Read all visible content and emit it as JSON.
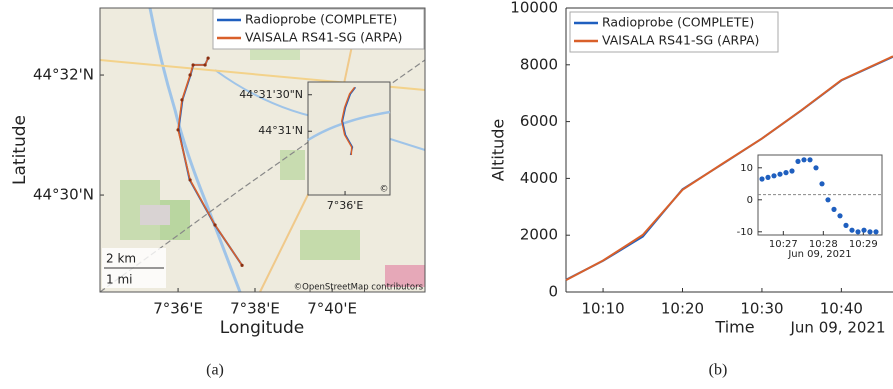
{
  "chart_data": [
    {
      "type": "map",
      "x_label": "Longitude",
      "y_label": "Latitude",
      "caption": "(a)",
      "xlim": [
        7.5662,
        7.7069
      ],
      "ylim": [
        44.4731,
        44.5519
      ],
      "xticks": [
        {
          "value": 7.6,
          "label": "7°36'E"
        },
        {
          "value": 7.6333,
          "label": "7°38'E"
        },
        {
          "value": 7.6667,
          "label": "7°40'E"
        }
      ],
      "yticks": [
        {
          "value": 44.5,
          "label": "44°30'N"
        },
        {
          "value": 44.5333,
          "label": "44°32'N"
        }
      ],
      "legend": "upper right",
      "series": [
        {
          "name": "Radioprobe (COMPLETE)",
          "color": "#1f5fbf",
          "x": [
            7.6277,
            7.6158,
            7.605,
            7.6002,
            7.6019,
            7.6054,
            7.6066,
            7.6117,
            7.613
          ],
          "values": [
            44.4805,
            44.4918,
            44.5043,
            44.5182,
            44.5265,
            44.5333,
            44.5361,
            44.5361,
            44.538
          ]
        },
        {
          "name": "VAISALA RS41-SG (ARPA)",
          "color": "#d9602a",
          "x": [
            7.6277,
            7.616,
            7.6052,
            7.6,
            7.6017,
            7.6052,
            7.6065,
            7.6117,
            7.613
          ],
          "values": [
            44.4805,
            44.4917,
            44.5042,
            44.5181,
            44.5264,
            44.5333,
            44.5361,
            44.5361,
            44.538
          ]
        }
      ],
      "scale_labels": [
        "2 km",
        "1 mi"
      ],
      "attribution": "©OpenStreetMap contributors",
      "inset": {
        "xlim": [
          7.5911,
          7.6108
        ],
        "ylim": [
          44.5022,
          44.5279
        ],
        "xticks": [
          {
            "value": 7.6,
            "label": "7°36'E"
          }
        ],
        "yticks": [
          {
            "value": 44.5167,
            "label": "44°31'N"
          },
          {
            "value": 44.525,
            "label": "44°31'30\"N"
          }
        ],
        "attribution": "©",
        "series": [
          {
            "color": "#1f5fbf",
            "x": [
              7.6013,
              7.6018,
              7.6001,
              7.5994,
              7.6001,
              7.6013,
              7.6025
            ],
            "values": [
              44.5113,
              44.5131,
              44.5159,
              44.519,
              44.5221,
              44.5252,
              44.5267
            ]
          },
          {
            "color": "#d9602a",
            "x": [
              7.6015,
              7.6016,
              7.5999,
              7.5992,
              7.5999,
              7.6011,
              7.6023
            ],
            "values": [
              44.5113,
              44.5131,
              44.5159,
              44.519,
              44.5221,
              44.5252,
              44.5267
            ]
          }
        ]
      }
    },
    {
      "type": "line",
      "x_label": "Time",
      "date_label": "Jun 09, 2021",
      "y_label": "Altitude",
      "caption": "(b)",
      "x": [
        "10:05:20",
        "10:10:00",
        "10:15:00",
        "10:20:00",
        "10:25:00",
        "10:30:00",
        "10:35:00",
        "10:40:00",
        "10:46:30"
      ],
      "xlim": [
        "10:05:20",
        "10:46:30"
      ],
      "xticks": [
        "10:10",
        "10:20",
        "10:30",
        "10:40"
      ],
      "ylim": [
        0,
        10000
      ],
      "yticks": [
        0,
        2000,
        4000,
        6000,
        8000,
        10000
      ],
      "legend": "upper left",
      "series": [
        {
          "name": "Radioprobe (COMPLETE)",
          "color": "#1f5fbf",
          "values": [
            430,
            1100,
            1950,
            3620,
            4500,
            5400,
            6400,
            7450,
            8280
          ]
        },
        {
          "name": "VAISALA RS41-SG (ARPA)",
          "color": "#d9602a",
          "values": [
            420,
            1110,
            2010,
            3600,
            4510,
            5400,
            6410,
            7460,
            8300
          ]
        }
      ],
      "inset": {
        "type": "scatter",
        "color": "#1f5fbf",
        "date_label": "Jun 09, 2021",
        "x": [
          "10:26:28",
          "10:26:37",
          "10:26:46",
          "10:26:55",
          "10:27:04",
          "10:27:13",
          "10:27:22",
          "10:27:31",
          "10:27:40",
          "10:27:49",
          "10:27:58",
          "10:28:07",
          "10:28:16",
          "10:28:25",
          "10:28:34",
          "10:28:43",
          "10:28:52",
          "10:29:01",
          "10:29:10",
          "10:29:19"
        ],
        "values": [
          6.5,
          7,
          7.5,
          8,
          8.5,
          9,
          12,
          12.5,
          12.5,
          10,
          5,
          0,
          -3,
          -5,
          -8,
          -9.5,
          -10,
          -9.5,
          -10,
          -10
        ],
        "reference_line": 1.6,
        "xlim": [
          "10:26:22",
          "10:29:28"
        ],
        "xticks": [
          "10:27",
          "10:28",
          "10:29"
        ],
        "ylim": [
          -11,
          14
        ],
        "yticks": [
          -10,
          0,
          10
        ]
      }
    }
  ]
}
